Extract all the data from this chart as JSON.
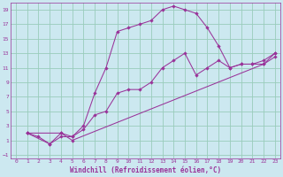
{
  "xlabel": "Windchill (Refroidissement éolien,°C)",
  "bg_color": "#cce8f0",
  "grid_color": "#99ccbb",
  "line_color": "#993399",
  "xlim": [
    -0.5,
    23.5
  ],
  "ylim": [
    -1.5,
    20
  ],
  "xticks": [
    0,
    1,
    2,
    3,
    4,
    5,
    6,
    7,
    8,
    9,
    10,
    11,
    12,
    13,
    14,
    15,
    16,
    17,
    18,
    19,
    20,
    21,
    22,
    23
  ],
  "yticks": [
    -1,
    1,
    3,
    5,
    7,
    9,
    11,
    13,
    15,
    17,
    19
  ],
  "line1_x": [
    1,
    2,
    3,
    4,
    5,
    6,
    7,
    8,
    9,
    10,
    11,
    12,
    13,
    14,
    15,
    16,
    17,
    18,
    19,
    20,
    21,
    22,
    23
  ],
  "line1_y": [
    2,
    1.5,
    0.5,
    1.5,
    1.5,
    3,
    7.5,
    11,
    16,
    16.5,
    17,
    17.5,
    19,
    19.5,
    19,
    18.5,
    16.5,
    14,
    11,
    11.5,
    11.5,
    12,
    13
  ],
  "line2_x": [
    1,
    3,
    4,
    5,
    6,
    7,
    8,
    9,
    10,
    11,
    12,
    13,
    14,
    15,
    16,
    17,
    18,
    19,
    20,
    21,
    22,
    23
  ],
  "line2_y": [
    2,
    0.5,
    2,
    1.5,
    2.5,
    4.5,
    5,
    7.5,
    8,
    8,
    9,
    11,
    12,
    13,
    10,
    11,
    12,
    11,
    11.5,
    11.5,
    11.5,
    12.5
  ],
  "line3_x": [
    1,
    4,
    5,
    22,
    23
  ],
  "line3_y": [
    2,
    2,
    1,
    11.5,
    13
  ]
}
